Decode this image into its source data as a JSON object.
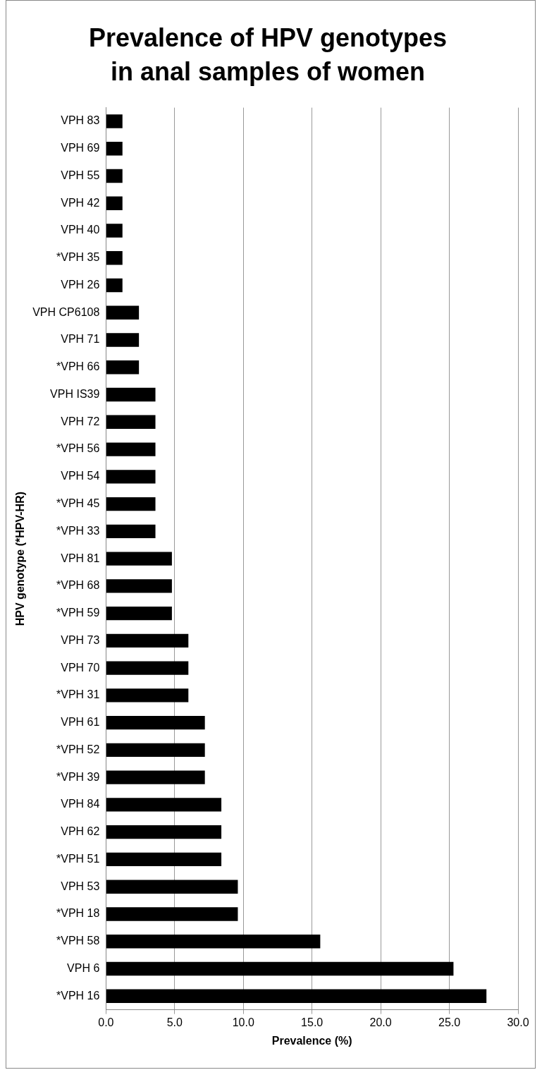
{
  "chart_data": {
    "type": "bar",
    "orientation": "horizontal",
    "title": "Prevalence of HPV genotypes in anal samples of women",
    "xlabel": "Prevalence (%)",
    "ylabel": "HPV genotype (*HPV-HR)",
    "categories": [
      "VPH 83",
      "VPH 69",
      "VPH 55",
      "VPH 42",
      "VPH 40",
      "*VPH 35",
      "VPH 26",
      "VPH CP6108",
      "VPH 71",
      "*VPH 66",
      "VPH IS39",
      "VPH 72",
      "*VPH 56",
      "VPH 54",
      "*VPH 45",
      "*VPH 33",
      "VPH 81",
      "*VPH 68",
      "*VPH 59",
      "VPH 73",
      "VPH 70",
      "*VPH 31",
      "VPH 61",
      "*VPH 52",
      "*VPH 39",
      "VPH 84",
      "VPH 62",
      "*VPH 51",
      "VPH 53",
      "*VPH 18",
      "*VPH 58",
      "VPH 6",
      "*VPH 16"
    ],
    "values": [
      1.2,
      1.2,
      1.2,
      1.2,
      1.2,
      1.2,
      1.2,
      2.4,
      2.4,
      2.4,
      3.6,
      3.6,
      3.6,
      3.6,
      3.6,
      3.6,
      4.8,
      4.8,
      4.8,
      6.0,
      6.0,
      6.0,
      7.2,
      7.2,
      7.2,
      8.4,
      8.4,
      8.4,
      9.6,
      9.6,
      15.6,
      25.3,
      27.7
    ],
    "color": "#000000",
    "xlim": [
      0,
      30
    ],
    "xticks": [
      {
        "value": 0,
        "label": "0.0"
      },
      {
        "value": 5,
        "label": "5.0"
      },
      {
        "value": 10,
        "label": "10.0"
      },
      {
        "value": 15,
        "label": "15.0"
      },
      {
        "value": 20,
        "label": "20.0"
      },
      {
        "value": 25,
        "label": "25.0"
      },
      {
        "value": 30,
        "label": "30.0"
      }
    ],
    "grid": "x",
    "legend": false
  }
}
